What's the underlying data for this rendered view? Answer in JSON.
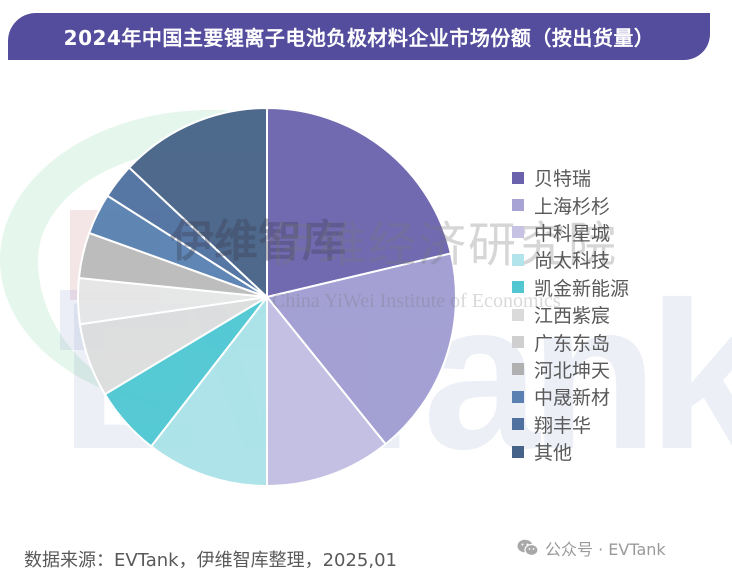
{
  "header": {
    "title": "2024年中国主要锂离子电池负极材料企业市场份额（按出货量）"
  },
  "watermark": {
    "cn_text": "伊维经济研究院",
    "en_text": "China YiWei Institute of Economics",
    "logo_text": "伊维智库",
    "big_text": "EVTank"
  },
  "chart_data": {
    "type": "pie",
    "title": "2024年中国主要锂离子电池负极材料企业市场份额（按出货量）",
    "start_angle_deg": 0,
    "direction": "clockwise",
    "legend_position": "right",
    "categories": [
      "贝特瑞",
      "上海杉杉",
      "中科星城",
      "尚太科技",
      "凯金新能源",
      "江西紫宸",
      "广东东岛",
      "河北坤天",
      "中晟新材",
      "翔丰华",
      "其他"
    ],
    "values": [
      21.3,
      17.9,
      10.8,
      10.5,
      5.9,
      6.3,
      3.9,
      3.9,
      3.5,
      3.0,
      13.0
    ],
    "colors": [
      "#6a62ad",
      "#9f9bd2",
      "#c1bde2",
      "#a9e1e8",
      "#4dc6d2",
      "#dcdcdc",
      "#e6e6e6",
      "#b9b9b9",
      "#567fb0",
      "#4d6f9f",
      "#456186"
    ],
    "unit": "%",
    "note": "estimated from slice angles; no data labels shown"
  },
  "legend": {
    "items": [
      {
        "label": "贝特瑞",
        "color": "#6a62ad"
      },
      {
        "label": "上海杉杉",
        "color": "#a7a3d4"
      },
      {
        "label": "中科星城",
        "color": "#c5c2e3"
      },
      {
        "label": "尚太科技",
        "color": "#b2e5eb"
      },
      {
        "label": "凯金新能源",
        "color": "#52c7d2"
      },
      {
        "label": "江西紫宸",
        "color": "#dadada"
      },
      {
        "label": "广东东岛",
        "color": "#cfcfcf"
      },
      {
        "label": "河北坤天",
        "color": "#b0b0b0"
      },
      {
        "label": "中晟新材",
        "color": "#5a80b1"
      },
      {
        "label": "翔丰华",
        "color": "#50719f"
      },
      {
        "label": "其他",
        "color": "#466288"
      }
    ]
  },
  "footer": {
    "source": "数据来源：EVTank，伊维智库整理，2025,01",
    "brand": "公众号 · EVTank"
  }
}
